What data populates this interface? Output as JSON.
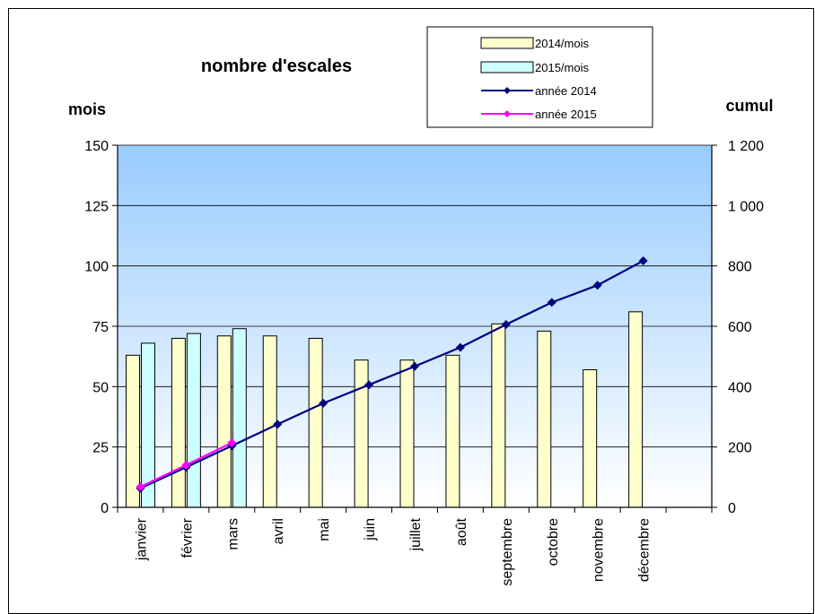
{
  "chart_data": {
    "type": "bar",
    "title": "nombre d'escales",
    "ylabel": "mois",
    "y2label": "cumul",
    "categories": [
      "janvier",
      "février",
      "mars",
      "avril",
      "mai",
      "juin",
      "juillet",
      "août",
      "septembre",
      "octobre",
      "novembre",
      "décembre",
      ""
    ],
    "ylim": [
      0,
      150
    ],
    "y2lim": [
      0,
      1200
    ],
    "yticks": [
      "0",
      "25",
      "50",
      "75",
      "100",
      "125",
      "150"
    ],
    "y2ticks": [
      "0",
      "200",
      "400",
      "600",
      "800",
      "1 000",
      "1 200"
    ],
    "grid": true,
    "legend_position": "top-right",
    "bar_series": [
      {
        "name": "2014/mois",
        "color": "#ffffcc",
        "values": [
          63,
          70,
          71,
          71,
          70,
          61,
          61,
          63,
          76,
          73,
          57,
          81
        ]
      },
      {
        "name": "2015/mois",
        "color": "#ccffff",
        "values": [
          68,
          72,
          74
        ]
      }
    ],
    "line_series": [
      {
        "name": "année 2014",
        "color": "#000080",
        "axis": "right",
        "values": [
          63,
          133,
          204,
          275,
          345,
          406,
          467,
          530,
          606,
          679,
          736,
          817
        ]
      },
      {
        "name": "année 2015",
        "color": "#ff00ff",
        "axis": "right",
        "values": [
          68,
          140,
          214
        ]
      }
    ]
  }
}
